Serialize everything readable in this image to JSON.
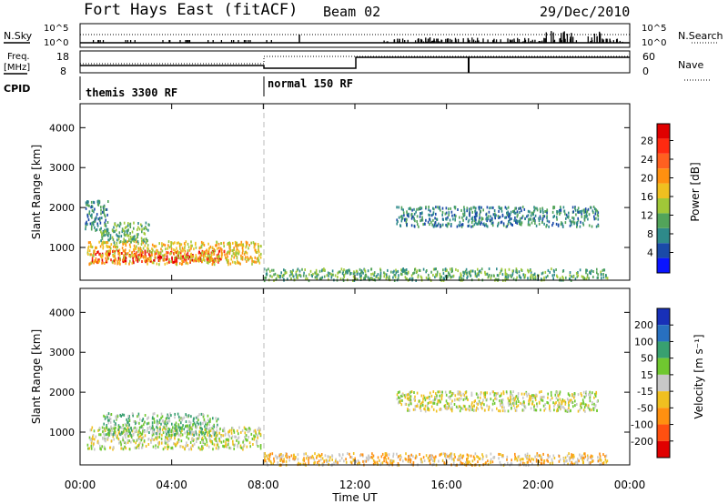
{
  "header": {
    "station": "Fort Hays East (fitACF)",
    "beam": "Beam 02",
    "date": "29/Dec/2010"
  },
  "strip": {
    "nsky_label": "N.Sky",
    "nsky_ticks": [
      "10^5",
      "10^0"
    ],
    "nsearch_label": "N.Search",
    "nsearch_ticks": [
      "10^5",
      "10^0"
    ],
    "freq_label": "Freq.",
    "freq_unit": "[MHz]",
    "freq_ticks": [
      "18",
      "8"
    ],
    "nave_label": "Nave",
    "nave_ticks": [
      "60",
      "0"
    ],
    "cpid_label": "CPID",
    "modes": [
      "themis 3300 RF",
      "normal 150 RF"
    ]
  },
  "chart_data": [
    {
      "type": "heatmap",
      "title": "",
      "xlabel": "",
      "ylabel": "Slant Range [km]",
      "x_ticks": [
        "00:00",
        "04:00",
        "08:00",
        "12:00",
        "16:00",
        "20:00",
        "00:00"
      ],
      "y_ticks": [
        "1000",
        "2000",
        "3000",
        "4000"
      ],
      "xlim": [
        0,
        24
      ],
      "ylim": [
        180,
        4600
      ],
      "colorbar": {
        "label": "Power [dB]",
        "ticks": [
          "4",
          "8",
          "12",
          "16",
          "20",
          "24",
          "28"
        ],
        "colors": [
          "#0a14ff",
          "#1a4aa8",
          "#2e8a8a",
          "#52a45a",
          "#a0c838",
          "#f0c020",
          "#ff9010",
          "#ff6020",
          "#ff2a10",
          "#e00000"
        ]
      },
      "regions": [
        {
          "t0": 0.5,
          "t1": 6.3,
          "r0": 650,
          "r1": 950,
          "level": 9
        },
        {
          "t0": 0.3,
          "t1": 7.9,
          "r0": 600,
          "r1": 1180,
          "level": 5
        },
        {
          "t0": 0.8,
          "t1": 3.0,
          "r0": 1150,
          "r1": 1650,
          "level": 3
        },
        {
          "t0": 0.2,
          "t1": 1.2,
          "r0": 1450,
          "r1": 2200,
          "level": 2
        },
        {
          "t0": 13.8,
          "t1": 22.6,
          "r0": 1550,
          "r1": 2050,
          "level": 2
        },
        {
          "t0": 8.0,
          "t1": 23.0,
          "r0": 200,
          "r1": 500,
          "level": 3
        }
      ]
    },
    {
      "type": "heatmap",
      "title": "",
      "xlabel": "Time UT",
      "ylabel": "Slant Range [km]",
      "x_ticks": [
        "00:00",
        "04:00",
        "08:00",
        "12:00",
        "16:00",
        "20:00",
        "00:00"
      ],
      "y_ticks": [
        "1000",
        "2000",
        "3000",
        "4000"
      ],
      "xlim": [
        0,
        24
      ],
      "ylim": [
        180,
        4600
      ],
      "colorbar": {
        "label": "Velocity [m s⁻¹]",
        "ticks": [
          "200",
          "100",
          "50",
          "15",
          "-15",
          "-50",
          "-100",
          "-200"
        ],
        "colors": [
          "#1830b8",
          "#2870c0",
          "#38a070",
          "#70c830",
          "#c8c8c8",
          "#f0c020",
          "#ff9010",
          "#ff5010",
          "#e00000"
        ]
      },
      "regions": [
        {
          "t0": 0.3,
          "t1": 7.9,
          "r0": 600,
          "r1": 1150,
          "level": 4
        },
        {
          "t0": 1.0,
          "t1": 6.0,
          "r0": 950,
          "r1": 1500,
          "level": 3
        },
        {
          "t0": 13.8,
          "t1": 22.6,
          "r0": 1550,
          "r1": 2050,
          "level": 4
        },
        {
          "t0": 8.0,
          "t1": 23.0,
          "r0": 200,
          "r1": 500,
          "level": 5
        }
      ]
    }
  ]
}
